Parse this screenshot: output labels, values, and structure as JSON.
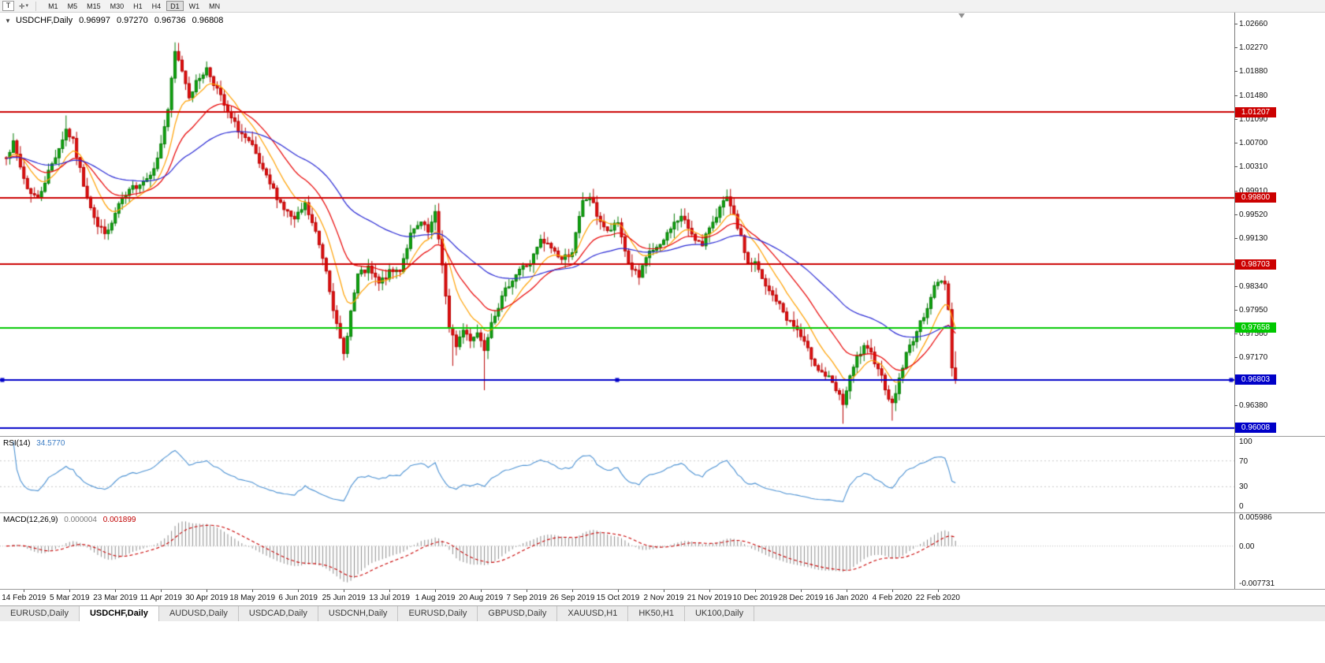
{
  "toolbar": {
    "chart_type_button": "T",
    "cursor_tool": {
      "glyph": "✛",
      "caret": "▾"
    },
    "timeframes": [
      "M1",
      "M5",
      "M15",
      "M30",
      "H1",
      "H4",
      "D1",
      "W1",
      "MN"
    ],
    "active_timeframe": "D1"
  },
  "main_chart": {
    "collapse_glyph": "▼",
    "symbol_label": "USDCHF,Daily",
    "open": "0.96997",
    "high": "0.97270",
    "low": "0.96736",
    "close": "0.96808"
  },
  "price_axis": {
    "ticks": [
      "1.02660",
      "1.02270",
      "1.01880",
      "1.01480",
      "1.01090",
      "1.00700",
      "1.00310",
      "0.99910",
      "0.99520",
      "0.99130",
      "0.98730",
      "0.98340",
      "0.97950",
      "0.97560",
      "0.97170",
      "0.96380"
    ]
  },
  "rsi_panel": {
    "label": "RSI(14)",
    "value": "34.5770",
    "axis_labels": [
      "100",
      "70",
      "30",
      "0"
    ]
  },
  "macd_panel": {
    "label": "MACD(12,26,9)",
    "macd_value": "0.000004",
    "signal_value": "0.001899",
    "axis_labels": [
      "0.005986",
      "0.00",
      "-0.007731"
    ]
  },
  "time_axis": {
    "dates": [
      "14 Feb 2019",
      "5 Mar 2019",
      "23 Mar 2019",
      "11 Apr 2019",
      "30 Apr 2019",
      "18 May 2019",
      "6 Jun 2019",
      "25 Jun 2019",
      "13 Jul 2019",
      "1 Aug 2019",
      "20 Aug 2019",
      "7 Sep 2019",
      "26 Sep 2019",
      "15 Oct 2019",
      "2 Nov 2019",
      "21 Nov 2019",
      "10 Dec 2019",
      "28 Dec 2019",
      "16 Jan 2020",
      "4 Feb 2020",
      "22 Feb 2020"
    ]
  },
  "tabs": {
    "items": [
      "EURUSD,Daily",
      "USDCHF,Daily",
      "AUDUSD,Daily",
      "USDCAD,Daily",
      "USDCNH,Daily",
      "EURUSD,Daily",
      "GBPUSD,Daily",
      "XAUUSD,H1",
      "HK50,H1",
      "UK100,Daily"
    ],
    "active_index": 1
  },
  "chart_data": {
    "type": "candlestick",
    "symbol": "USDCHF",
    "period": "Daily",
    "bars": 271,
    "current_ohlc": {
      "open": 0.96997,
      "high": 0.9727,
      "low": 0.96736,
      "close": 0.96808
    },
    "price_scale": {
      "max": 1.02842,
      "min": 0.95878
    },
    "horizontal_lines": [
      {
        "price": 1.01207,
        "label": "1.01207",
        "color": "#CC0000",
        "width": 2,
        "selected": false
      },
      {
        "price": 0.998,
        "label": "0.99800",
        "color": "#CC0000",
        "width": 2,
        "selected": false
      },
      {
        "price": 0.98703,
        "label": "0.98703",
        "color": "#CC0000",
        "width": 2,
        "selected": false
      },
      {
        "price": 0.97658,
        "label": "0.97658",
        "color": "#00C800",
        "width": 2,
        "selected": false
      },
      {
        "price": 0.96803,
        "label": "0.96803",
        "color": "#0000C8",
        "width": 2,
        "selected": true
      },
      {
        "price": 0.96008,
        "label": "0.96008",
        "color": "#0000C8",
        "width": 2,
        "selected": false
      }
    ],
    "moving_averages": [
      {
        "period": 10,
        "color": "#FFA000"
      },
      {
        "period": 22,
        "color": "#E80000"
      },
      {
        "period": 55,
        "color": "#2A2AD4"
      }
    ],
    "indicators": {
      "rsi": {
        "period": 14,
        "current": 34.577,
        "overbought": 70,
        "oversold": 30,
        "color": "#4A90D2"
      },
      "macd": {
        "fast": 12,
        "slow": 26,
        "signal": 9,
        "macd_current": 4e-06,
        "signal_current": 0.001899,
        "scale_max": 0.005986,
        "scale_min": -0.007731,
        "histogram_color": "#8C8C8C",
        "signal_color": "#C80000"
      }
    },
    "candle_colors": {
      "up": "#067A06",
      "up_fill": "#0FA50F",
      "down": "#B80000",
      "down_fill": "#E01010"
    },
    "close_waypoints": [
      [
        0,
        1.005
      ],
      [
        2,
        1.0068
      ],
      [
        4,
        1.003
      ],
      [
        6,
        0.9995
      ],
      [
        9,
        0.9978
      ],
      [
        12,
        1.0022
      ],
      [
        15,
        1.0062
      ],
      [
        17,
        1.0092
      ],
      [
        19,
        1.0072
      ],
      [
        22,
        1.0002
      ],
      [
        26,
        0.9932
      ],
      [
        29,
        0.9922
      ],
      [
        32,
        0.9968
      ],
      [
        36,
        0.9996
      ],
      [
        40,
        1.0012
      ],
      [
        43,
        1.0042
      ],
      [
        46,
        1.0125
      ],
      [
        48,
        1.0218
      ],
      [
        50,
        1.019
      ],
      [
        52,
        1.0148
      ],
      [
        55,
        1.0178
      ],
      [
        57,
        1.0192
      ],
      [
        60,
        1.0158
      ],
      [
        63,
        1.0118
      ],
      [
        66,
        1.0092
      ],
      [
        70,
        1.0062
      ],
      [
        73,
        1.0022
      ],
      [
        76,
        0.9992
      ],
      [
        79,
        0.9962
      ],
      [
        82,
        0.9942
      ],
      [
        85,
        0.9968
      ],
      [
        88,
        0.9922
      ],
      [
        91,
        0.9862
      ],
      [
        94,
        0.9768
      ],
      [
        96,
        0.9722
      ],
      [
        98,
        0.9792
      ],
      [
        100,
        0.9852
      ],
      [
        103,
        0.9862
      ],
      [
        106,
        0.9838
      ],
      [
        109,
        0.9856
      ],
      [
        112,
        0.9862
      ],
      [
        115,
        0.9918
      ],
      [
        118,
        0.9938
      ],
      [
        120,
        0.9922
      ],
      [
        122,
        0.9952
      ],
      [
        124,
        0.9872
      ],
      [
        126,
        0.9762
      ],
      [
        128,
        0.9738
      ],
      [
        130,
        0.9762
      ],
      [
        132,
        0.9748
      ],
      [
        134,
        0.9758
      ],
      [
        136,
        0.9732
      ],
      [
        138,
        0.9778
      ],
      [
        140,
        0.9802
      ],
      [
        143,
        0.9838
      ],
      [
        146,
        0.9862
      ],
      [
        149,
        0.9872
      ],
      [
        152,
        0.9908
      ],
      [
        155,
        0.9898
      ],
      [
        158,
        0.9878
      ],
      [
        161,
        0.9892
      ],
      [
        164,
        0.9972
      ],
      [
        166,
        0.9982
      ],
      [
        168,
        0.9952
      ],
      [
        171,
        0.9922
      ],
      [
        174,
        0.9938
      ],
      [
        177,
        0.9872
      ],
      [
        180,
        0.9848
      ],
      [
        183,
        0.9892
      ],
      [
        186,
        0.9898
      ],
      [
        189,
        0.9932
      ],
      [
        192,
        0.9948
      ],
      [
        195,
        0.9922
      ],
      [
        198,
        0.9898
      ],
      [
        200,
        0.9932
      ],
      [
        203,
        0.9962
      ],
      [
        205,
        0.9978
      ],
      [
        208,
        0.9932
      ],
      [
        211,
        0.9872
      ],
      [
        213,
        0.9872
      ],
      [
        216,
        0.9832
      ],
      [
        219,
        0.9812
      ],
      [
        222,
        0.9782
      ],
      [
        225,
        0.9762
      ],
      [
        228,
        0.9728
      ],
      [
        231,
        0.9698
      ],
      [
        234,
        0.9682
      ],
      [
        236,
        0.9662
      ],
      [
        238,
        0.9642
      ],
      [
        240,
        0.9682
      ],
      [
        242,
        0.9716
      ],
      [
        244,
        0.9732
      ],
      [
        246,
        0.9722
      ],
      [
        248,
        0.9702
      ],
      [
        250,
        0.9668
      ],
      [
        252,
        0.9638
      ],
      [
        254,
        0.9682
      ],
      [
        256,
        0.9722
      ],
      [
        258,
        0.9748
      ],
      [
        260,
        0.9772
      ],
      [
        262,
        0.9802
      ],
      [
        264,
        0.9832
      ],
      [
        266,
        0.9845
      ],
      [
        267,
        0.9838
      ],
      [
        268,
        0.98
      ],
      [
        269,
        0.97
      ],
      [
        270,
        0.96808
      ]
    ],
    "wick_overrides": [
      {
        "bar": 17,
        "high": 1.0115
      },
      {
        "bar": 48,
        "high": 1.0235
      },
      {
        "bar": 96,
        "low": 0.9712
      },
      {
        "bar": 122,
        "high": 0.9968
      },
      {
        "bar": 127,
        "low": 0.9703
      },
      {
        "bar": 136,
        "low": 0.9663
      },
      {
        "bar": 205,
        "high": 0.9985
      },
      {
        "bar": 238,
        "low": 0.9608
      },
      {
        "bar": 252,
        "low": 0.9613
      },
      {
        "bar": 269,
        "low": 0.969
      }
    ],
    "date_tick_bars": [
      5,
      18,
      31,
      44,
      57,
      70,
      83,
      96,
      109,
      122,
      135,
      148,
      161,
      174,
      187,
      200,
      213,
      226,
      239,
      252,
      265
    ]
  }
}
